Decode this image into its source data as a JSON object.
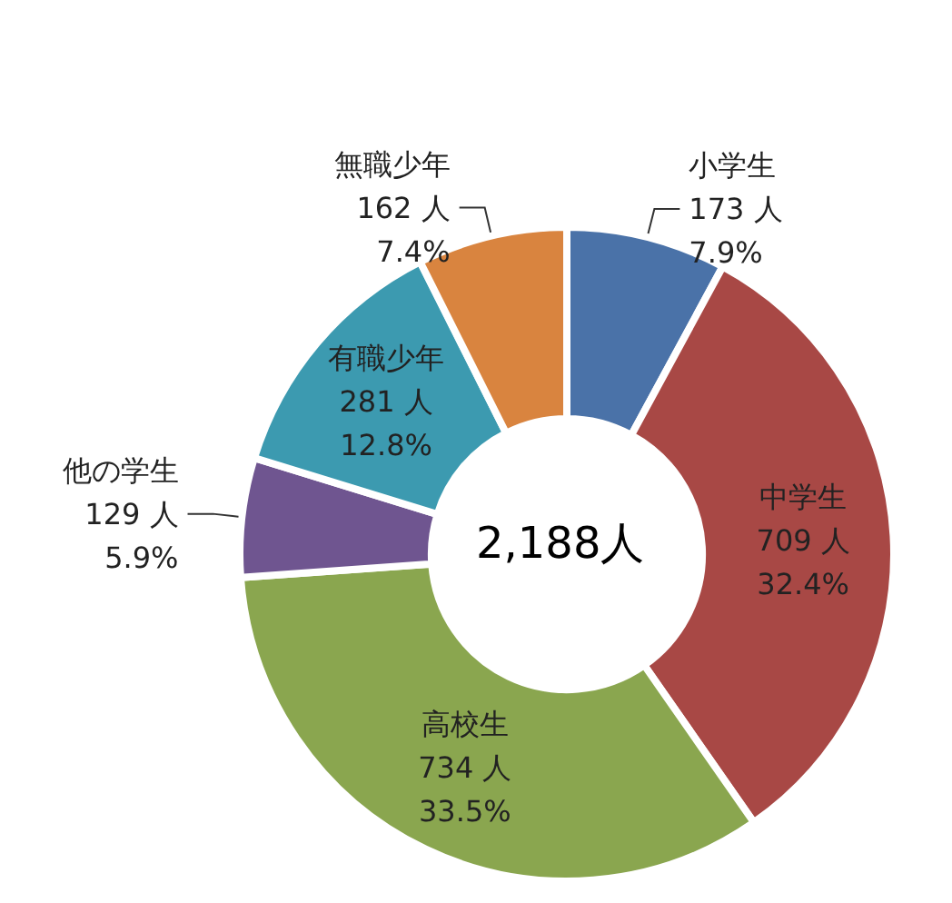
{
  "chart_data": {
    "type": "donut",
    "categories": [
      "小学生",
      "中学生",
      "高校生",
      "他の学生",
      "有職少年",
      "無職少年"
    ],
    "values": [
      173,
      709,
      734,
      129,
      281,
      162
    ],
    "value_labels": [
      "173 人\n7.9%",
      "709 人\n32.4%",
      "734 人\n33.5%",
      "129 人\n5.9%",
      "281 人\n12.8%",
      "162 人\n7.4%"
    ],
    "colors": [
      "#4a72a8",
      "#a84845",
      "#8aa64f",
      "#6f5590",
      "#3c9ab0",
      "#d9843f"
    ],
    "annotations": [
      "2,188人"
    ],
    "legend": false
  }
}
